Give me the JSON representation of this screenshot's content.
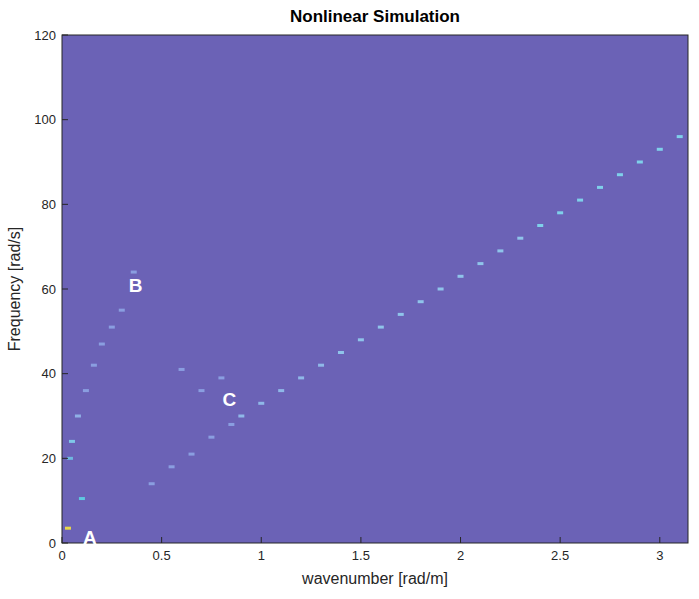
{
  "chart_data": {
    "type": "scatter",
    "title": "Nonlinear Simulation",
    "x_label": "wavenumber [rad/m]",
    "y_label": "Frequency [rad/s]",
    "x": [
      0.9,
      1.0,
      1.1,
      1.2,
      1.3,
      1.4,
      1.5,
      1.6,
      1.7,
      1.8,
      1.9,
      2.0,
      2.1,
      2.2,
      2.3,
      2.4,
      2.5,
      2.6,
      2.7,
      2.8,
      2.9,
      3.0,
      3.1,
      0.45,
      0.55,
      0.65,
      0.75,
      0.85,
      0.05,
      0.08,
      0.12,
      0.16,
      0.2,
      0.25,
      0.3,
      0.36,
      0.6,
      0.7,
      0.8,
      0.03,
      0.1,
      0.04
    ],
    "values": [
      30,
      33,
      36,
      39,
      42,
      45,
      48,
      51,
      54,
      57,
      60,
      63,
      66,
      69,
      72,
      75,
      78,
      81,
      84,
      87,
      90,
      93,
      96,
      14,
      18,
      21,
      25,
      28,
      24,
      30,
      36,
      42,
      47,
      51,
      55,
      64,
      41,
      36,
      39,
      3.5,
      10.5,
      20
    ],
    "colors": [
      "#8fb8e8",
      "#8fb8e8",
      "#8fb8e8",
      "#8fb8e8",
      "#8fb8e8",
      "#8fc4ea",
      "#8fc4ea",
      "#8fc4ea",
      "#8fc4ea",
      "#8fc4ea",
      "#8fc4ea",
      "#8fc4ea",
      "#8fc4ea",
      "#8fc4ea",
      "#8fc4ea",
      "#7fd0ea",
      "#7fd0ea",
      "#7fd0ea",
      "#7fd0ea",
      "#7fd0ea",
      "#7fd0ea",
      "#7fd0ea",
      "#7fd0ea",
      "#8a9ee0",
      "#8a9ee0",
      "#8a9ee0",
      "#8a9ee0",
      "#8a9ee0",
      "#7fc8e8",
      "#8fb0e6",
      "#8a9ee0",
      "#8a9ee0",
      "#8a9ee0",
      "#8a9ee0",
      "#8a9ee0",
      "#8a9ee0",
      "#8a9ee0",
      "#8a9ee0",
      "#8a9ee0",
      "#e8d84a",
      "#5fc8e0",
      "#6fb8e0"
    ],
    "xlim": [
      0,
      3.1416
    ],
    "xticks": [
      0,
      0.5,
      1,
      1.5,
      2,
      2.5,
      3
    ],
    "ylim": [
      0,
      120
    ],
    "yticks": [
      0,
      20,
      40,
      60,
      80,
      100,
      120
    ],
    "grid": false,
    "annotations": [
      {
        "text": "A",
        "x": 0.14,
        "y": 1.5
      },
      {
        "text": "B",
        "x": 0.37,
        "y": 61
      },
      {
        "text": "C",
        "x": 0.84,
        "y": 34
      }
    ]
  }
}
